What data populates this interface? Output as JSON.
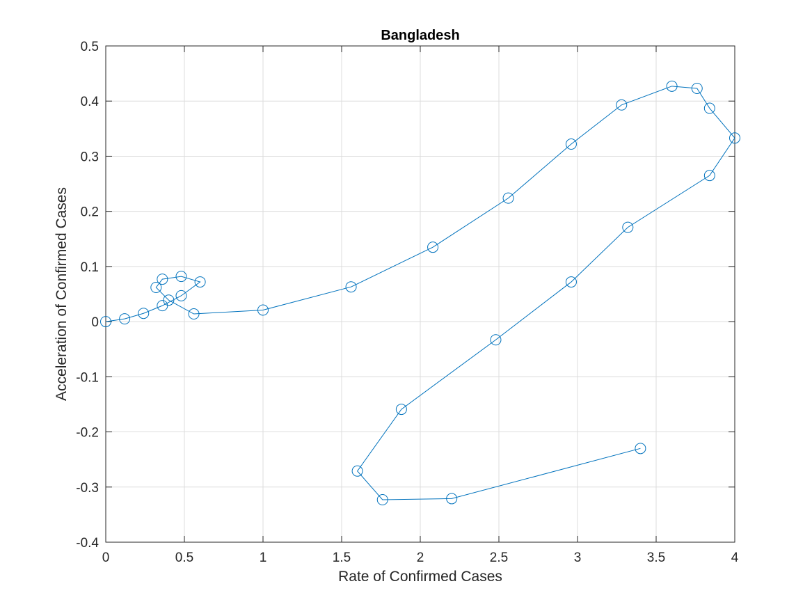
{
  "chart_data": {
    "type": "line",
    "title": "Bangladesh",
    "xlabel": "Rate of Confirmed Cases",
    "ylabel": "Acceleration of Confirmed Cases",
    "xlim": [
      0,
      4
    ],
    "ylim": [
      -0.4,
      0.5
    ],
    "xticks": [
      0,
      0.5,
      1,
      1.5,
      2,
      2.5,
      3,
      3.5,
      4
    ],
    "yticks": [
      -0.4,
      -0.3,
      -0.2,
      -0.1,
      0,
      0.1,
      0.2,
      0.3,
      0.4,
      0.5
    ],
    "grid": true,
    "marker": "circle",
    "series_color": "#0072BD",
    "series": [
      {
        "points": [
          [
            0,
            0
          ],
          [
            0.12,
            0.005
          ],
          [
            0.24,
            0.015
          ],
          [
            0.36,
            0.029
          ],
          [
            0.48,
            0.047
          ],
          [
            0.6,
            0.072
          ],
          [
            0.48,
            0.082
          ],
          [
            0.36,
            0.077
          ],
          [
            0.32,
            0.062
          ],
          [
            0.4,
            0.039
          ],
          [
            0.56,
            0.014
          ],
          [
            1.0,
            0.021
          ],
          [
            1.56,
            0.063
          ],
          [
            2.08,
            0.135
          ],
          [
            2.56,
            0.224
          ],
          [
            2.96,
            0.322
          ],
          [
            3.28,
            0.393
          ],
          [
            3.6,
            0.427
          ],
          [
            3.76,
            0.423
          ],
          [
            3.84,
            0.387
          ],
          [
            4.0,
            0.333
          ],
          [
            3.84,
            0.265
          ],
          [
            3.32,
            0.171
          ],
          [
            2.96,
            0.072
          ],
          [
            2.48,
            -0.033
          ],
          [
            1.88,
            -0.159
          ],
          [
            1.6,
            -0.271
          ],
          [
            1.76,
            -0.323
          ],
          [
            2.2,
            -0.321
          ],
          [
            3.4,
            -0.23
          ]
        ]
      }
    ]
  }
}
